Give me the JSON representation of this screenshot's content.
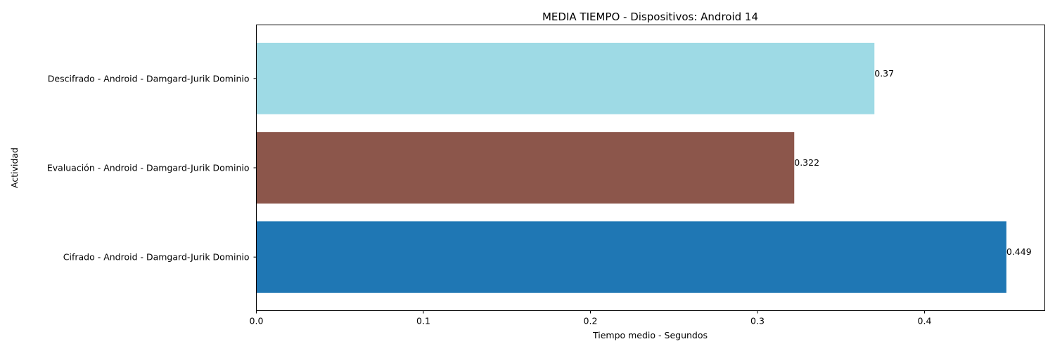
{
  "chart_data": {
    "type": "bar",
    "orientation": "horizontal",
    "title": "MEDIA TIEMPO - Dispositivos: Android 14",
    "xlabel": "Tiempo medio - Segundos",
    "ylabel": "Actividad",
    "categories": [
      "Cifrado - Android - Damgard-Jurik Dominio",
      "Evaluación - Android - Damgard-Jurik Dominio",
      "Descifrado - Android - Damgard-Jurik Dominio"
    ],
    "values": [
      0.449,
      0.322,
      0.37
    ],
    "value_labels": [
      "0.449",
      "0.322",
      "0.37"
    ],
    "colors": [
      "#1f77b4",
      "#8c564b",
      "#9edae5"
    ],
    "xlim": [
      0,
      0.472
    ],
    "xticks": [
      0,
      0.1,
      0.2,
      0.3,
      0.4
    ],
    "xtick_labels": [
      "0.0",
      "0.1",
      "0.2",
      "0.3",
      "0.4"
    ],
    "grid": false,
    "legend": "none"
  }
}
